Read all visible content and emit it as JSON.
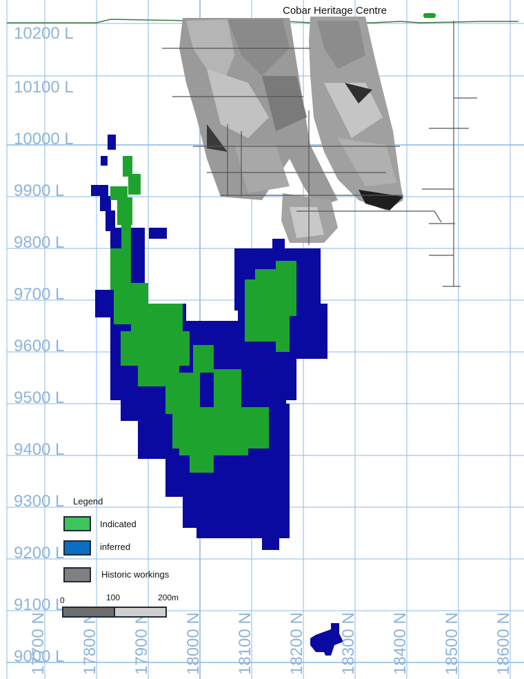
{
  "map": {
    "landmark": "Cobar Heritage Centre",
    "levels": [
      "10200 L",
      "10100 L",
      "10000 L",
      "9900 L",
      "9800 L",
      "9700 L",
      "9600 L",
      "9500 L",
      "9400 L",
      "9300 L",
      "9200 L",
      "9100 L",
      "9000 L"
    ],
    "northings": [
      "17700 N",
      "17800 N",
      "17900 N",
      "18000 N",
      "18100 N",
      "18200 N",
      "18300 N",
      "18400 N",
      "18500 N",
      "18600 N"
    ]
  },
  "legend": {
    "title": "Legend",
    "items": [
      {
        "label": "Indicated",
        "color": "#3cc55a"
      },
      {
        "label": "inferred",
        "color": "#0a6fc2"
      },
      {
        "label": "Historic workings",
        "color": "#808080"
      }
    ]
  },
  "scale_bar": {
    "labels": [
      "0",
      "100",
      "200m"
    ]
  },
  "colors": {
    "indicated": "#1fa32f",
    "inferred": "#0a0aa0",
    "grid": "#2a7fd6",
    "labels": "#8fb4d8"
  }
}
